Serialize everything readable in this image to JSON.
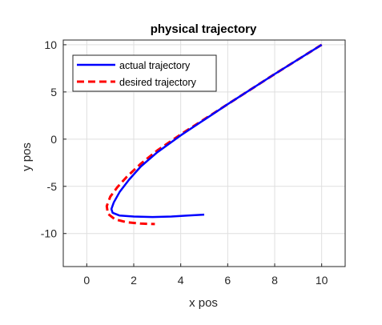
{
  "chart_data": {
    "type": "line",
    "title": "physical trajectory",
    "xlabel": "x pos",
    "ylabel": "y pos",
    "xlim": [
      -1,
      11
    ],
    "ylim": [
      -13.5,
      10.5
    ],
    "xticks": [
      0,
      2,
      4,
      6,
      8,
      10
    ],
    "yticks": [
      10,
      5,
      0,
      -5,
      -10
    ],
    "grid": true,
    "legend_position": "top-left",
    "series": [
      {
        "name": "actual trajectory",
        "color": "#0000ff",
        "style": "solid",
        "x": [
          10,
          8,
          6,
          4,
          3,
          2.3,
          1.8,
          1.4,
          1.15,
          1.05,
          1.1,
          1.4,
          2.0,
          2.8,
          3.6,
          4.3,
          5.0
        ],
        "y": [
          10,
          6.9,
          3.7,
          0.4,
          -1.4,
          -2.9,
          -4.3,
          -5.6,
          -6.7,
          -7.4,
          -7.8,
          -8.1,
          -8.2,
          -8.25,
          -8.2,
          -8.1,
          -8.0
        ]
      },
      {
        "name": "desired trajectory",
        "color": "#ff0000",
        "style": "dashed",
        "x": [
          10,
          8,
          6,
          4,
          3,
          2.3,
          1.7,
          1.3,
          1.0,
          0.85,
          0.9,
          1.2,
          1.7,
          2.3,
          2.9
        ],
        "y": [
          10,
          6.9,
          3.7,
          0.5,
          -1.2,
          -2.6,
          -4.0,
          -5.1,
          -6.1,
          -7.1,
          -7.9,
          -8.5,
          -8.8,
          -8.95,
          -9.0
        ]
      }
    ]
  }
}
